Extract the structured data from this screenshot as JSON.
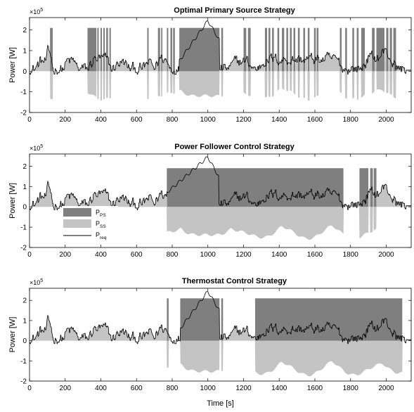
{
  "figure": {
    "xlabel": "Time [s]",
    "colors": {
      "ps": "#7f7f7f",
      "ss": "#c4c4c4",
      "preq": "#000000",
      "axis": "#000000"
    }
  },
  "chart_data": [
    {
      "type": "area",
      "title": "Optimal Primary Source Strategy",
      "ylabel": "Power [W]",
      "y_exponent": "×10^5",
      "xlim": [
        0,
        2140
      ],
      "ylim": [
        -2,
        2.6
      ],
      "xticks": [
        "0",
        "200",
        "400",
        "600",
        "800",
        "1000",
        "1200",
        "1400",
        "1600",
        "1800",
        "2000"
      ],
      "yticks": [
        "-2",
        "-1",
        "0",
        "1",
        "2"
      ],
      "legend": null,
      "ps_max": 2.1,
      "ss_min": -1.35,
      "ps_segments": [
        [
          115,
          130
        ],
        [
          325,
          375
        ],
        [
          380,
          388
        ],
        [
          398,
          406
        ],
        [
          414,
          422
        ],
        [
          430,
          440
        ],
        [
          448,
          456
        ],
        [
          660,
          668
        ],
        [
          720,
          732
        ],
        [
          738,
          745
        ],
        [
          770,
          778
        ],
        [
          790,
          800
        ],
        [
          805,
          815
        ],
        [
          840,
          1065
        ],
        [
          1075,
          1085
        ],
        [
          1200,
          1215
        ],
        [
          1225,
          1240
        ],
        [
          1320,
          1332
        ],
        [
          1340,
          1350
        ],
        [
          1360,
          1370
        ],
        [
          1390,
          1400
        ],
        [
          1415,
          1428
        ],
        [
          1440,
          1450
        ],
        [
          1460,
          1470
        ],
        [
          1480,
          1490
        ],
        [
          1505,
          1515
        ],
        [
          1535,
          1545
        ],
        [
          1560,
          1570
        ],
        [
          1595,
          1605
        ],
        [
          1610,
          1620
        ],
        [
          1740,
          1750
        ],
        [
          1770,
          1780
        ],
        [
          1810,
          1820
        ],
        [
          1835,
          1845
        ],
        [
          1860,
          1880
        ],
        [
          1920,
          1935
        ],
        [
          1945,
          1990
        ],
        [
          2000,
          2012
        ],
        [
          2020,
          2032
        ],
        [
          2040,
          2055
        ]
      ],
      "preq_peak": [
        [
          840,
          0.5
        ],
        [
          1000,
          2.45
        ],
        [
          1065,
          1.5
        ]
      ]
    },
    {
      "type": "area",
      "title": "Power Follower Control Strategy",
      "ylabel": "Power [W]",
      "y_exponent": "×10^5",
      "xlim": [
        0,
        2140
      ],
      "ylim": [
        -2,
        2.6
      ],
      "xticks": [
        "0",
        "200",
        "400",
        "600",
        "800",
        "1000",
        "1200",
        "1400",
        "1600",
        "1800",
        "2000"
      ],
      "yticks": [
        "-2",
        "-1",
        "0",
        "1",
        "2"
      ],
      "legend": {
        "placement": "lower-left",
        "entries": [
          {
            "label": "P",
            "sub": "PS"
          },
          {
            "label": "P",
            "sub": "SS"
          },
          {
            "label": "P",
            "sub": "req"
          }
        ]
      },
      "ps_max": 1.9,
      "ss_min": -1.55,
      "ps_segments": [
        [
          770,
          1760
        ],
        [
          1850,
          1900
        ],
        [
          1910,
          1925
        ],
        [
          1930,
          1945
        ]
      ],
      "preq_peak": [
        [
          770,
          0.7
        ],
        [
          1000,
          2.45
        ],
        [
          1060,
          1.5
        ]
      ]
    },
    {
      "type": "area",
      "title": "Thermostat Control Strategy",
      "ylabel": "Power [W]",
      "y_exponent": "×10^5",
      "xlim": [
        0,
        2140
      ],
      "ylim": [
        -2,
        2.6
      ],
      "xticks": [
        "0",
        "200",
        "400",
        "600",
        "800",
        "1000",
        "1200",
        "1400",
        "1600",
        "1800",
        "2000"
      ],
      "yticks": [
        "-2",
        "-1",
        "0",
        "1",
        "2"
      ],
      "xlabel": "Time [s]",
      "legend": null,
      "ps_max": 2.1,
      "ss_min": -1.7,
      "ps_segments": [
        [
          770,
          780
        ],
        [
          845,
          1065
        ],
        [
          1075,
          1085
        ],
        [
          1265,
          2090
        ]
      ],
      "preq_peak": [
        [
          845,
          0.6
        ],
        [
          1000,
          2.45
        ],
        [
          1065,
          1.5
        ]
      ]
    }
  ]
}
